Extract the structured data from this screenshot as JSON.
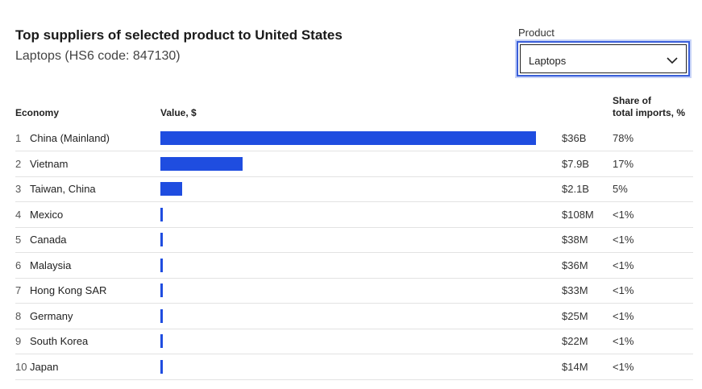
{
  "header": {
    "title": "Top suppliers of selected product to United States",
    "subtitle": "Laptops (HS6 code: 847130)"
  },
  "product_select": {
    "label": "Product",
    "value": "Laptops"
  },
  "table": {
    "col_economy": "Economy",
    "col_value": "Value, $",
    "col_share_line1": "Share of",
    "col_share_line2": "total imports, %"
  },
  "chart_data": {
    "type": "bar",
    "orientation": "horizontal",
    "title": "Top suppliers of selected product to United States",
    "subtitle": "Laptops (HS6 code: 847130)",
    "xlabel": "Value, $",
    "ylabel": "Economy",
    "categories": [
      "China (Mainland)",
      "Vietnam",
      "Taiwan, China",
      "Mexico",
      "Canada",
      "Malaysia",
      "Hong Kong SAR",
      "Germany",
      "South Korea",
      "Japan"
    ],
    "values": [
      36000000000,
      7900000000,
      2100000000,
      108000000,
      38000000,
      36000000,
      33000000,
      25000000,
      22000000,
      14000000
    ],
    "rows": [
      {
        "rank": "1",
        "name": "China (Mainland)",
        "value": 36000000000,
        "value_label": "$36B",
        "share": "78%"
      },
      {
        "rank": "2",
        "name": "Vietnam",
        "value": 7900000000,
        "value_label": "$7.9B",
        "share": "17%"
      },
      {
        "rank": "3",
        "name": "Taiwan, China",
        "value": 2100000000,
        "value_label": "$2.1B",
        "share": "5%"
      },
      {
        "rank": "4",
        "name": "Mexico",
        "value": 108000000,
        "value_label": "$108M",
        "share": "<1%"
      },
      {
        "rank": "5",
        "name": "Canada",
        "value": 38000000,
        "value_label": "$38M",
        "share": "<1%"
      },
      {
        "rank": "6",
        "name": "Malaysia",
        "value": 36000000,
        "value_label": "$36M",
        "share": "<1%"
      },
      {
        "rank": "7",
        "name": "Hong Kong SAR",
        "value": 33000000,
        "value_label": "$33M",
        "share": "<1%"
      },
      {
        "rank": "8",
        "name": "Germany",
        "value": 25000000,
        "value_label": "$25M",
        "share": "<1%"
      },
      {
        "rank": "9",
        "name": "South Korea",
        "value": 22000000,
        "value_label": "$22M",
        "share": "<1%"
      },
      {
        "rank": "10",
        "name": "Japan",
        "value": 14000000,
        "value_label": "$14M",
        "share": "<1%"
      }
    ],
    "bar_color": "#1f4de0",
    "grid": false
  }
}
